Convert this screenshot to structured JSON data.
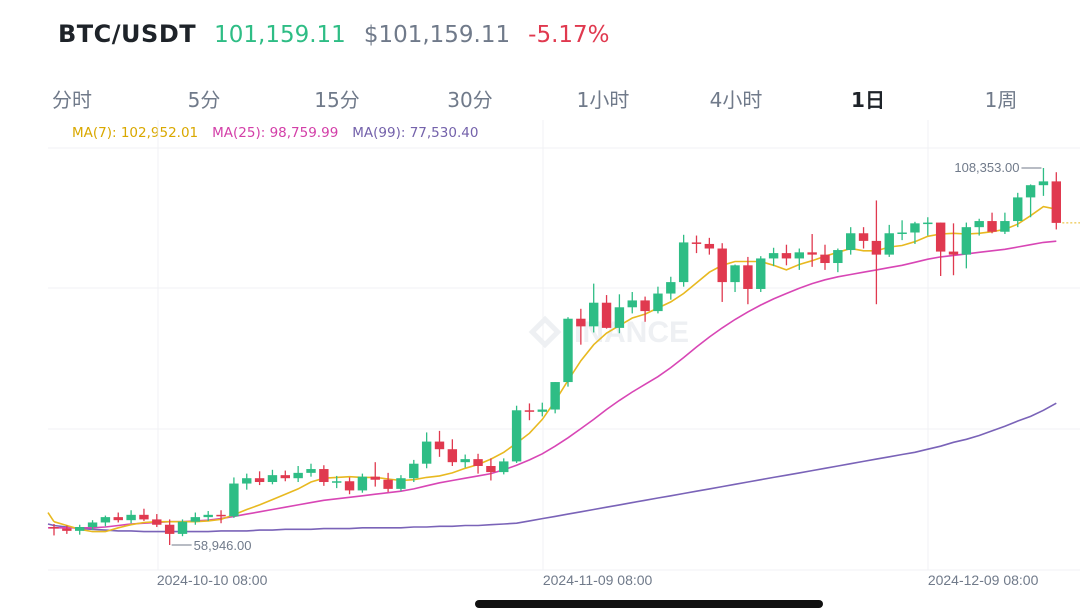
{
  "header": {
    "pair": "BTC/USDT",
    "price": "101,159.11",
    "usd_price": "$101,159.11",
    "change": "-5.17%"
  },
  "tabs": [
    "分时",
    "5分",
    "15分",
    "30分",
    "1小时",
    "4小时",
    "1日",
    "1周"
  ],
  "active_tab": "1日",
  "ma": {
    "ma7": "MA(7): 102,952.01",
    "ma25": "MA(25): 98,759.99",
    "ma99": "MA(99): 77,530.40"
  },
  "colors": {
    "up": "#2ebd85",
    "down": "#e0394f",
    "ma7": "#e8b920",
    "ma25": "#d846b5",
    "ma99": "#7a63b8"
  },
  "chart_data": {
    "type": "candlestick",
    "x_labels": [
      {
        "index": 6,
        "label": "2024-10-10 08:00"
      },
      {
        "index": 36,
        "label": "2024-11-09 08:00"
      },
      {
        "index": 66,
        "label": "2024-12-09 08:00"
      }
    ],
    "high_label": "108,353.00",
    "low_label": "58,946.00",
    "ohlc": [
      [
        61300,
        61700,
        60200,
        61100
      ],
      [
        61100,
        61500,
        60400,
        60800
      ],
      [
        60800,
        61600,
        60300,
        61300
      ],
      [
        61300,
        62200,
        60900,
        61900
      ],
      [
        61900,
        62800,
        61400,
        62600
      ],
      [
        62600,
        63200,
        61900,
        62200
      ],
      [
        62200,
        63500,
        61800,
        62900
      ],
      [
        62900,
        63700,
        62100,
        62300
      ],
      [
        62300,
        63000,
        61300,
        61600
      ],
      [
        61600,
        62300,
        58946,
        60400
      ],
      [
        60400,
        62300,
        60100,
        62000
      ],
      [
        62000,
        63200,
        61600,
        62600
      ],
      [
        62600,
        63400,
        62100,
        62900
      ],
      [
        62900,
        63500,
        61800,
        62700
      ],
      [
        62700,
        67800,
        62500,
        67000
      ],
      [
        67000,
        68300,
        66200,
        67700
      ],
      [
        67700,
        68600,
        66800,
        67200
      ],
      [
        67200,
        68800,
        66900,
        68100
      ],
      [
        68100,
        68700,
        67300,
        67700
      ],
      [
        67700,
        69300,
        67200,
        68400
      ],
      [
        68400,
        69600,
        67900,
        68900
      ],
      [
        68900,
        69400,
        66700,
        67200
      ],
      [
        67200,
        68000,
        66400,
        67300
      ],
      [
        67300,
        67800,
        65600,
        66100
      ],
      [
        66100,
        68300,
        65800,
        67900
      ],
      [
        67900,
        69800,
        66600,
        67500
      ],
      [
        67500,
        68400,
        65900,
        66300
      ],
      [
        66300,
        68100,
        66000,
        67700
      ],
      [
        67700,
        70100,
        67200,
        69600
      ],
      [
        69600,
        73700,
        69000,
        72500
      ],
      [
        72500,
        73900,
        70500,
        71500
      ],
      [
        71500,
        72800,
        69300,
        69800
      ],
      [
        69800,
        70800,
        69100,
        70200
      ],
      [
        70200,
        70900,
        68300,
        69300
      ],
      [
        69300,
        70300,
        67400,
        68500
      ],
      [
        68500,
        70300,
        68200,
        69900
      ],
      [
        69900,
        77200,
        69700,
        76600
      ],
      [
        76600,
        77500,
        75300,
        76400
      ],
      [
        76400,
        77600,
        75800,
        76700
      ],
      [
        76700,
        80300,
        76200,
        80300
      ],
      [
        80300,
        88800,
        79700,
        88600
      ],
      [
        88600,
        89900,
        85200,
        87600
      ],
      [
        87600,
        93200,
        86800,
        90700
      ],
      [
        90700,
        91700,
        87300,
        87400
      ],
      [
        87400,
        91800,
        86700,
        90100
      ],
      [
        90100,
        92100,
        89300,
        91000
      ],
      [
        91000,
        91500,
        88200,
        89600
      ],
      [
        89600,
        92800,
        89300,
        91900
      ],
      [
        91900,
        94100,
        91100,
        93400
      ],
      [
        93400,
        99600,
        92800,
        98600
      ],
      [
        98600,
        99500,
        97200,
        98400
      ],
      [
        98400,
        99200,
        97000,
        97800
      ],
      [
        97800,
        98500,
        90800,
        93400
      ],
      [
        93400,
        95700,
        92100,
        95600
      ],
      [
        95600,
        96700,
        90500,
        92500
      ],
      [
        92500,
        96800,
        92100,
        96500
      ],
      [
        96500,
        97900,
        95500,
        97200
      ],
      [
        97200,
        98300,
        95600,
        96500
      ],
      [
        96500,
        97800,
        95000,
        97300
      ],
      [
        97300,
        99700,
        95400,
        97000
      ],
      [
        97000,
        98300,
        95000,
        95900
      ],
      [
        95900,
        97800,
        94700,
        97600
      ],
      [
        97600,
        100600,
        97000,
        99800
      ],
      [
        99800,
        100600,
        97800,
        98800
      ],
      [
        98800,
        104100,
        90500,
        97000
      ],
      [
        97000,
        100900,
        96700,
        99800
      ],
      [
        99800,
        101500,
        98900,
        99900
      ],
      [
        99900,
        101300,
        98400,
        101100
      ],
      [
        101100,
        101900,
        99500,
        101200
      ],
      [
        101200,
        101200,
        94200,
        97400
      ],
      [
        97400,
        101100,
        94300,
        97000
      ],
      [
        97000,
        101200,
        95200,
        100600
      ],
      [
        100600,
        101700,
        99500,
        101400
      ],
      [
        101400,
        102500,
        99800,
        100000
      ],
      [
        100000,
        102500,
        99700,
        101400
      ],
      [
        101400,
        105100,
        100600,
        104500
      ],
      [
        104500,
        106200,
        101900,
        106100
      ],
      [
        106100,
        108353,
        104700,
        106600
      ],
      [
        106600,
        107800,
        100300,
        101159
      ]
    ],
    "ma7": [
      62000,
      61500,
      61000,
      60700,
      60700,
      61200,
      61600,
      61900,
      62000,
      62000,
      62000,
      62000,
      62100,
      62300,
      62900,
      63600,
      64200,
      64900,
      65600,
      66300,
      67200,
      67700,
      67800,
      67900,
      67800,
      67800,
      67600,
      67400,
      67500,
      67800,
      68000,
      68400,
      69000,
      69500,
      70200,
      71100,
      72300,
      73600,
      75400,
      77800,
      80500,
      83100,
      85200,
      86700,
      87700,
      88700,
      89200,
      90000,
      90800,
      91900,
      93300,
      94700,
      95600,
      96100,
      96100,
      96100,
      95600,
      95000,
      95700,
      96200,
      96800,
      97300,
      97800,
      97500,
      97500,
      98000,
      98200,
      98700,
      99400,
      99700,
      99800,
      99700,
      99800,
      100000,
      100300,
      101000,
      102100,
      103300,
      102952
    ],
    "ma25": [
      61200,
      61200,
      61200,
      61200,
      61300,
      61500,
      61700,
      61800,
      61900,
      62000,
      62000,
      62100,
      62200,
      62400,
      62700,
      63000,
      63300,
      63600,
      63900,
      64200,
      64500,
      64800,
      65000,
      65200,
      65400,
      65600,
      65800,
      66000,
      66300,
      66700,
      67100,
      67400,
      67700,
      68000,
      68300,
      68800,
      69400,
      70100,
      70900,
      71900,
      73000,
      74200,
      75400,
      76700,
      77900,
      79000,
      80000,
      81000,
      82200,
      83500,
      84900,
      86200,
      87400,
      88500,
      89500,
      90400,
      91200,
      91900,
      92600,
      93200,
      93700,
      94100,
      94400,
      94700,
      95000,
      95300,
      95600,
      96000,
      96400,
      96700,
      96900,
      97100,
      97300,
      97500,
      97700,
      98000,
      98300,
      98600,
      98760
    ],
    "ma99": [
      61500,
      61300,
      61100,
      61000,
      60900,
      60800,
      60800,
      60700,
      60700,
      60700,
      60700,
      60700,
      60700,
      60800,
      60800,
      60800,
      60900,
      60900,
      61000,
      61000,
      61000,
      61100,
      61100,
      61100,
      61200,
      61200,
      61200,
      61200,
      61300,
      61300,
      61400,
      61400,
      61500,
      61500,
      61600,
      61700,
      61800,
      62100,
      62400,
      62700,
      63000,
      63300,
      63600,
      63900,
      64200,
      64500,
      64800,
      65100,
      65400,
      65700,
      66000,
      66300,
      66600,
      66900,
      67200,
      67500,
      67800,
      68100,
      68400,
      68700,
      69000,
      69300,
      69600,
      69900,
      70200,
      70500,
      70800,
      71100,
      71500,
      71900,
      72400,
      72800,
      73300,
      73900,
      74500,
      75200,
      75800,
      76600,
      77530
    ]
  }
}
